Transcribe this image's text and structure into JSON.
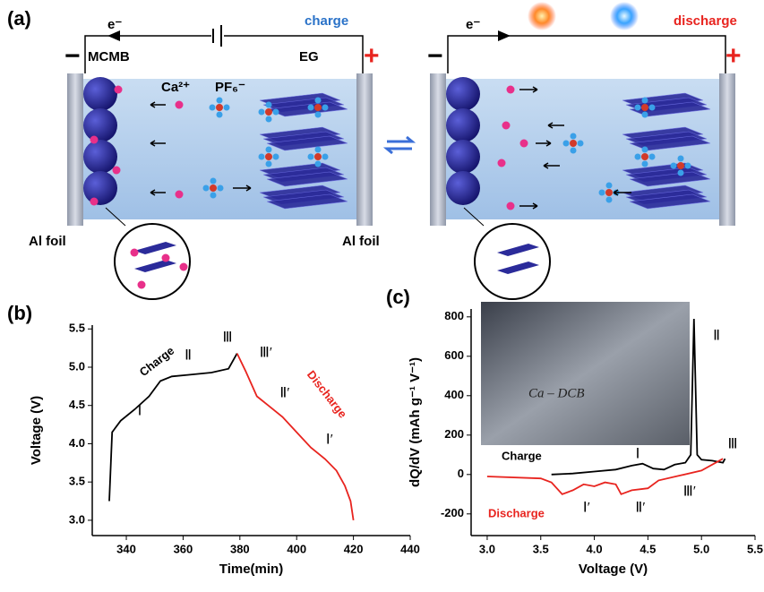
{
  "schematic": {
    "panel_label": "(a)",
    "electrons": [
      "e⁻",
      "e⁻"
    ],
    "charge_label": "charge",
    "discharge_label": "discharge",
    "minus": [
      "−",
      "−"
    ],
    "plus": [
      "+",
      "+"
    ],
    "anode": "MCMB",
    "cathode": "EG",
    "cation": "Ca²⁺",
    "anion": "PF₆⁻",
    "foils": [
      "Al foil",
      "Al foil"
    ]
  },
  "chart_data": [
    {
      "type": "line",
      "panel_label": "(b)",
      "x_label": "Time(min)",
      "y_label": "Voltage (V)",
      "xlim": [
        328,
        440
      ],
      "xticks": [
        340,
        360,
        380,
        400,
        420,
        440
      ],
      "ylim": [
        2.8,
        5.55
      ],
      "yticks": [
        {
          "value": 3,
          "label": "3.0"
        },
        3.5,
        {
          "value": 4,
          "label": "4.0"
        },
        4.5,
        {
          "value": 5,
          "label": "5.0"
        },
        5.5
      ],
      "series": [
        {
          "name": "Charge",
          "color": "#000000",
          "x": [
            334,
            335,
            338,
            343,
            348,
            352,
            356,
            362,
            370,
            376,
            379
          ],
          "values": [
            3.25,
            4.15,
            4.3,
            4.45,
            4.62,
            4.82,
            4.88,
            4.9,
            4.93,
            4.98,
            5.18
          ]
        },
        {
          "name": "Discharge",
          "color": "#e8241f",
          "x": [
            379,
            382,
            386,
            390,
            395,
            400,
            405,
            410,
            414,
            417,
            419,
            420
          ],
          "values": [
            5.18,
            4.95,
            4.62,
            4.5,
            4.35,
            4.15,
            3.95,
            3.8,
            3.65,
            3.45,
            3.25,
            3.0
          ]
        }
      ],
      "annotations": [
        "Ⅰ",
        "Ⅱ",
        "Ⅲ",
        "Ⅲ′",
        "Ⅱ′",
        "Ⅰ′"
      ]
    },
    {
      "type": "line",
      "panel_label": "(c)",
      "x_label": "Voltage (V)",
      "y_label": "dQ/dV (mAh g⁻¹ V⁻¹)",
      "xlim": [
        2.85,
        5.5
      ],
      "xticks": [
        {
          "value": 3,
          "label": "3.0"
        },
        3.5,
        {
          "value": 4,
          "label": "4.0"
        },
        4.5,
        {
          "value": 5,
          "label": "5.0"
        },
        5.5
      ],
      "ylim": [
        -310,
        840
      ],
      "yticks": [
        -200,
        0,
        200,
        400,
        600,
        800
      ],
      "series": [
        {
          "name": "Charge",
          "color": "#000000",
          "x": [
            3.6,
            3.8,
            4.0,
            4.2,
            4.35,
            4.45,
            4.55,
            4.65,
            4.75,
            4.85,
            4.9,
            4.93,
            4.96,
            5.0,
            5.1,
            5.2,
            5.22
          ],
          "values": [
            0,
            5,
            15,
            25,
            45,
            55,
            30,
            25,
            50,
            60,
            100,
            790,
            100,
            75,
            70,
            60,
            80
          ]
        },
        {
          "name": "Discharge",
          "color": "#e8241f",
          "x": [
            3.0,
            3.5,
            3.6,
            3.7,
            3.8,
            3.9,
            4.0,
            4.1,
            4.2,
            4.25,
            4.35,
            4.5,
            4.6,
            4.8,
            5.0,
            5.2
          ],
          "values": [
            -10,
            -20,
            -40,
            -100,
            -80,
            -50,
            -60,
            -40,
            -50,
            -100,
            -80,
            -70,
            -30,
            -5,
            20,
            80
          ]
        }
      ],
      "annotations": [
        "Ⅰ",
        "Ⅱ",
        "Ⅲ",
        "Ⅰ′",
        "Ⅱ′",
        "Ⅲ′"
      ],
      "photo_label": "Ca – DCB"
    }
  ]
}
